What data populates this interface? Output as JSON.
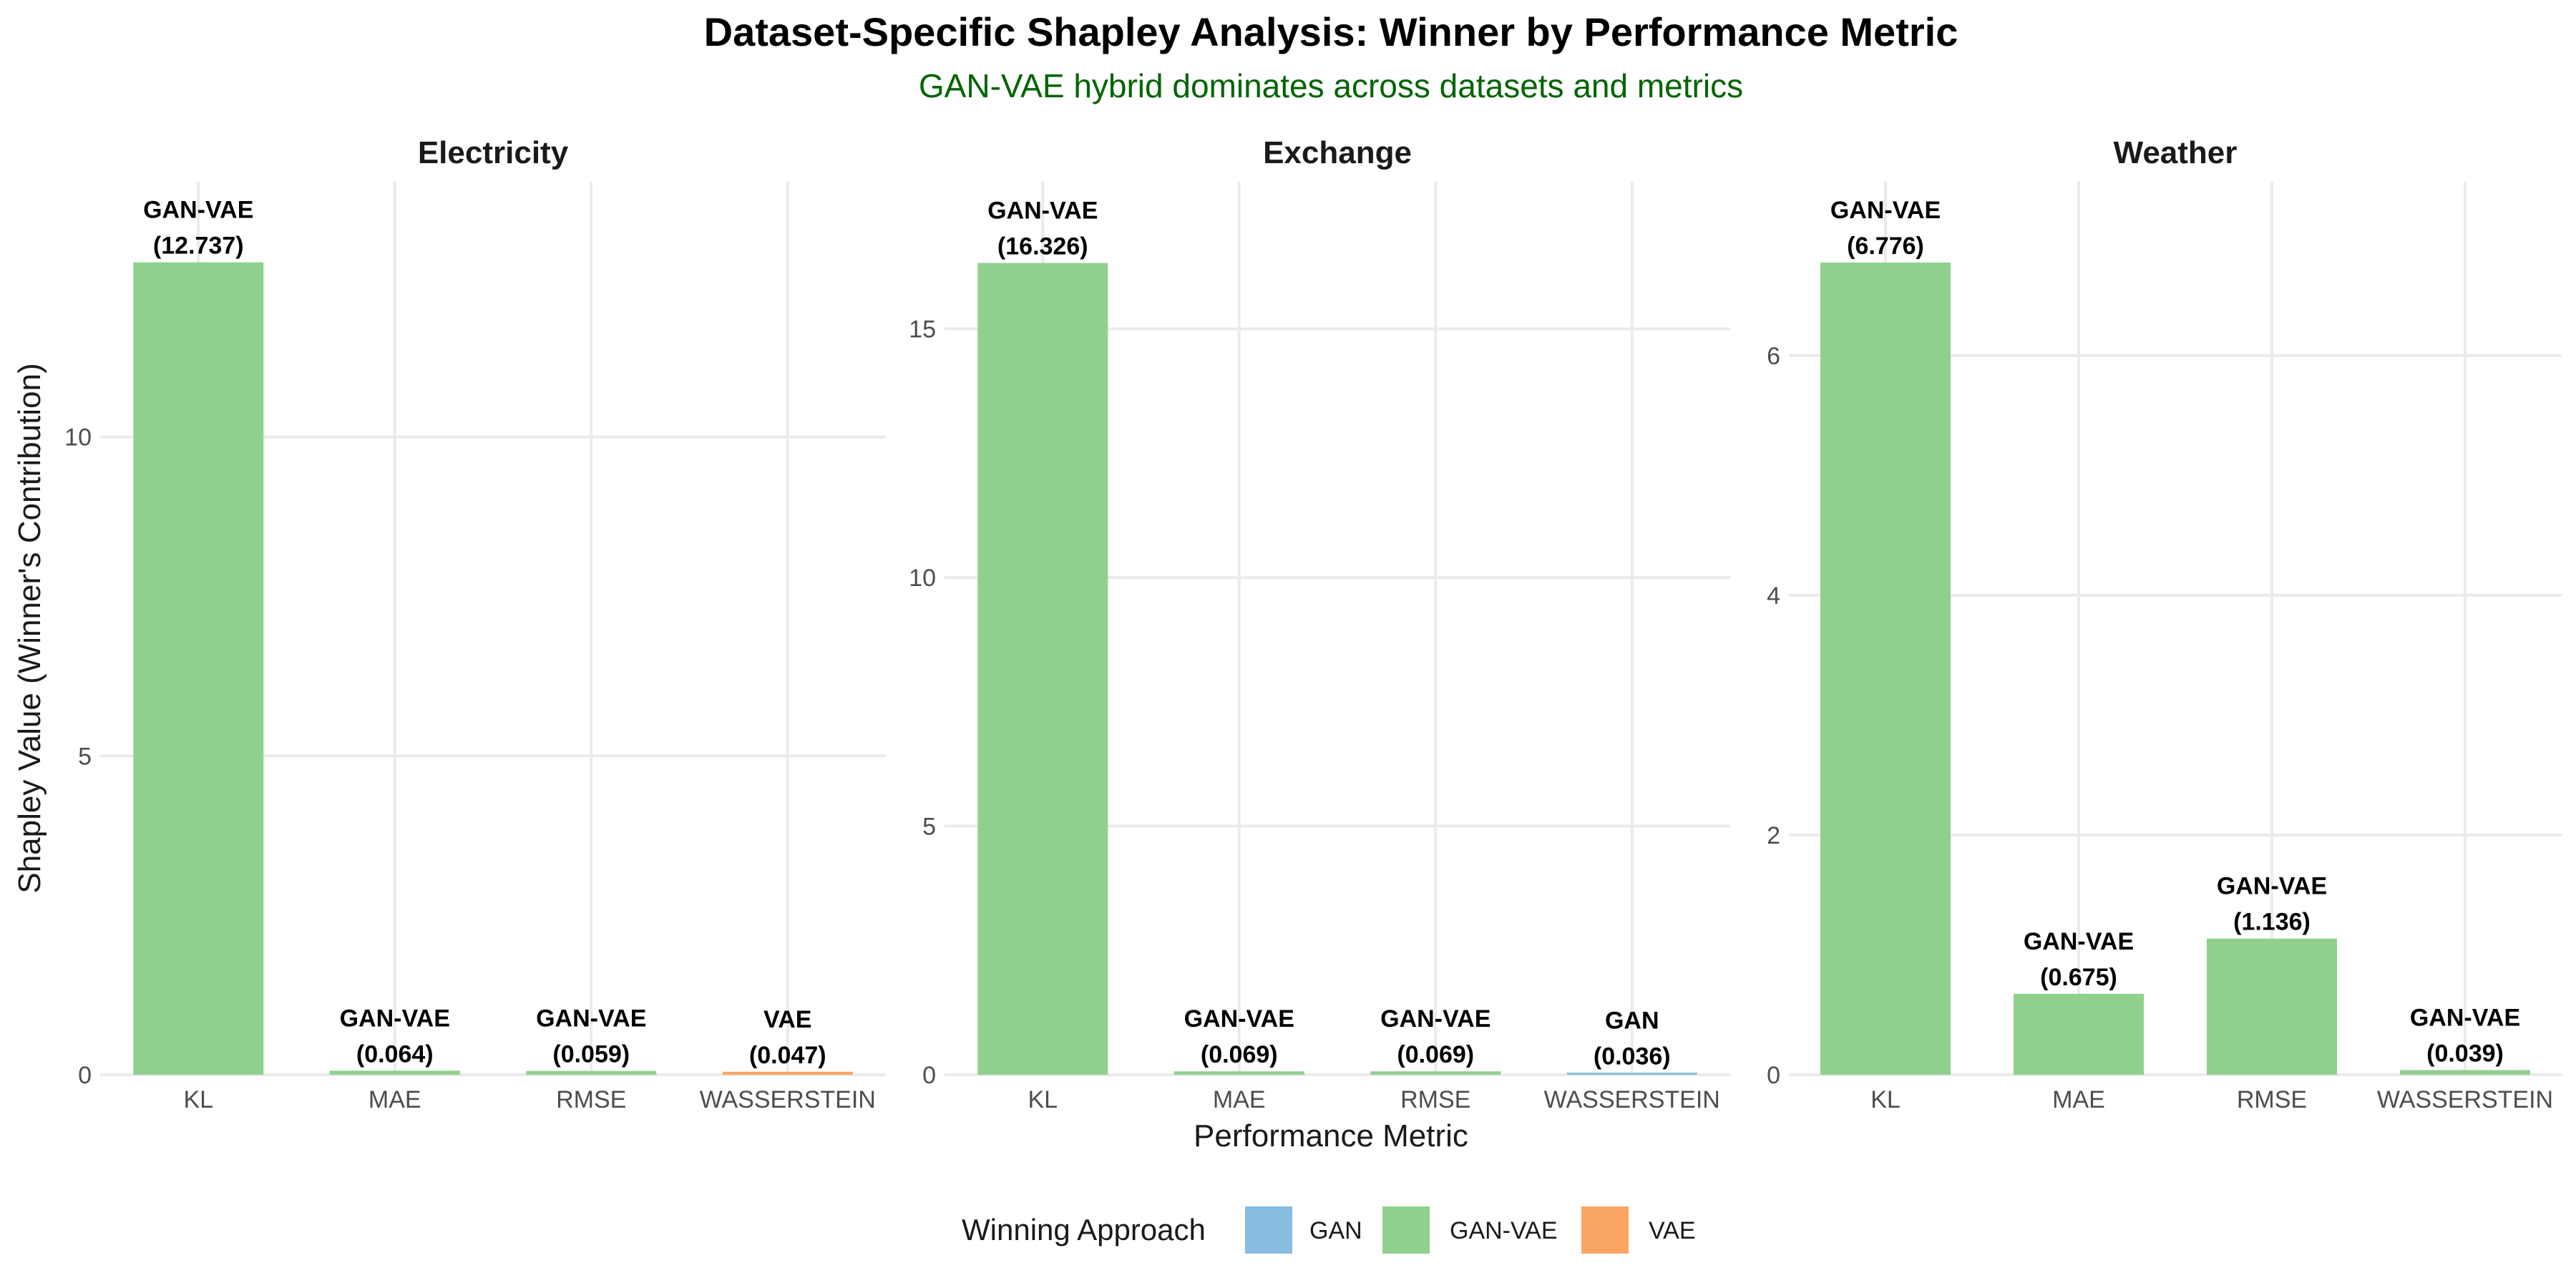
{
  "title": "Dataset-Specific Shapley Analysis: Winner by Performance Metric",
  "subtitle": "GAN-VAE hybrid dominates across datasets and metrics",
  "colors": {
    "GAN": "#88BCE0",
    "GAN-VAE": "#90D08E",
    "VAE": "#FBA565",
    "grid": "#EBEBEB",
    "subtitle": "#006400"
  },
  "chart_data": {
    "type": "bar",
    "xlabel": "Performance Metric",
    "ylabel": "Shapley Value (Winner's Contribution)",
    "categories": [
      "KL",
      "MAE",
      "RMSE",
      "WASSERSTEIN"
    ],
    "facets": [
      {
        "name": "Electricity",
        "ylim": [
          0,
          14
        ],
        "yticks": [
          0,
          5,
          10
        ],
        "bars": [
          {
            "category": "KL",
            "winner": "GAN-VAE",
            "value": 12.737,
            "value_label": "(12.737)"
          },
          {
            "category": "MAE",
            "winner": "GAN-VAE",
            "value": 0.064,
            "value_label": "(0.064)"
          },
          {
            "category": "RMSE",
            "winner": "GAN-VAE",
            "value": 0.059,
            "value_label": "(0.059)"
          },
          {
            "category": "WASSERSTEIN",
            "winner": "VAE",
            "value": 0.047,
            "value_label": "(0.047)"
          }
        ]
      },
      {
        "name": "Exchange",
        "ylim": [
          0,
          17.96
        ],
        "yticks": [
          0,
          5,
          10,
          15
        ],
        "bars": [
          {
            "category": "KL",
            "winner": "GAN-VAE",
            "value": 16.326,
            "value_label": "(16.326)"
          },
          {
            "category": "MAE",
            "winner": "GAN-VAE",
            "value": 0.069,
            "value_label": "(0.069)"
          },
          {
            "category": "RMSE",
            "winner": "GAN-VAE",
            "value": 0.069,
            "value_label": "(0.069)"
          },
          {
            "category": "WASSERSTEIN",
            "winner": "GAN",
            "value": 0.036,
            "value_label": "(0.036)"
          }
        ]
      },
      {
        "name": "Weather",
        "ylim": [
          0,
          7.45
        ],
        "yticks": [
          0,
          2,
          4,
          6
        ],
        "bars": [
          {
            "category": "KL",
            "winner": "GAN-VAE",
            "value": 6.776,
            "value_label": "(6.776)"
          },
          {
            "category": "MAE",
            "winner": "GAN-VAE",
            "value": 0.675,
            "value_label": "(0.675)"
          },
          {
            "category": "RMSE",
            "winner": "GAN-VAE",
            "value": 1.136,
            "value_label": "(1.136)"
          },
          {
            "category": "WASSERSTEIN",
            "winner": "GAN-VAE",
            "value": 0.039,
            "value_label": "(0.039)"
          }
        ]
      }
    ],
    "legend": {
      "title": "Winning Approach",
      "position": "bottom",
      "items": [
        "GAN",
        "GAN-VAE",
        "VAE"
      ]
    },
    "grid": true
  }
}
